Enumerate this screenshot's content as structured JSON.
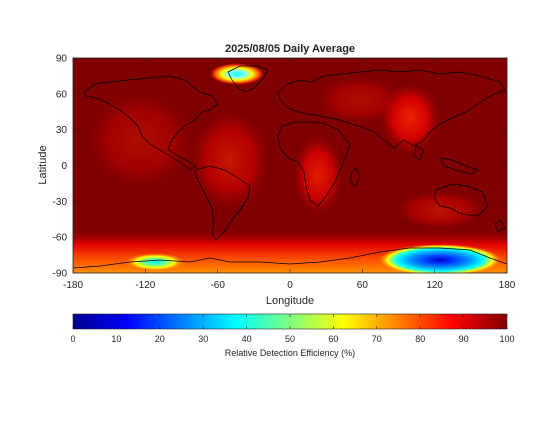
{
  "chart_data": {
    "type": "heatmap",
    "title": "2025/08/05 Daily Average",
    "xlabel": "Longitude",
    "ylabel": "Latitude",
    "xlim": [
      -180,
      180
    ],
    "ylim": [
      -90,
      90
    ],
    "xticks": [
      -180,
      -120,
      -60,
      0,
      60,
      120,
      180
    ],
    "yticks": [
      90,
      60,
      30,
      0,
      -30,
      -60,
      -90
    ],
    "colorbar": {
      "label": "Relative Detection Efficiency (%)",
      "range": [
        0,
        100
      ],
      "ticks": [
        0,
        10,
        20,
        30,
        40,
        50,
        60,
        70,
        80,
        90,
        100
      ],
      "colormap": "jet",
      "colors": [
        "#00008f",
        "#0000ff",
        "#00ffff",
        "#ffff00",
        "#ff0000",
        "#800000"
      ]
    },
    "background_value_percent": 100,
    "features": [
      {
        "name": "Greenland",
        "lon": -42,
        "lat": 72,
        "min_value_percent": 38
      },
      {
        "name": "Antarctic West",
        "lon": -120,
        "lat": -80,
        "min_value_percent": 40
      },
      {
        "name": "Antarctic East",
        "lon": 110,
        "lat": -80,
        "min_value_percent": 8
      },
      {
        "name": "Tibet / East Asia",
        "lon": 90,
        "lat": 35,
        "min_value_percent": 88
      },
      {
        "name": "Southern Africa",
        "lon": 20,
        "lat": -12,
        "min_value_percent": 88
      },
      {
        "name": "South America",
        "lon": -60,
        "lat": -15,
        "min_value_percent": 93
      }
    ]
  }
}
